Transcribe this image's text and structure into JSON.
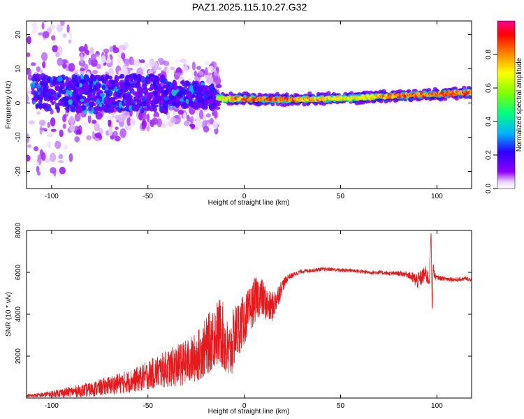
{
  "title": "PAZ1.2025.115.10.27.G32",
  "chart_data": [
    {
      "type": "heatmap",
      "title": "PAZ1.2025.115.10.27.G32",
      "xlabel": "Height of straight line (km)",
      "ylabel": "Frequency (Hz)",
      "xlim": [
        -113,
        118
      ],
      "ylim": [
        -25,
        24
      ],
      "x_ticks": [
        -100,
        -50,
        0,
        50,
        100
      ],
      "y_ticks": [
        -20,
        -10,
        0,
        10,
        20
      ],
      "x_tick_labels": [
        "-100",
        "-50",
        "0",
        "50",
        "100"
      ],
      "y_tick_labels": [
        "-20",
        "-10",
        "0",
        "10",
        "20"
      ],
      "colorbar": {
        "label": "Normalized spectral amplitude",
        "range": [
          0,
          1
        ],
        "ticks": [
          0.0,
          0.2,
          0.4,
          0.6,
          0.8
        ],
        "tick_labels": [
          "0.0",
          "0.2",
          "0.4",
          "0.6",
          "0.8"
        ],
        "colors": [
          "#ffffff",
          "#8f00ff",
          "#2b00ff",
          "#00b4ff",
          "#00ff80",
          "#7fff00",
          "#ffff00",
          "#ff8000",
          "#ff0000",
          "#ff0090"
        ]
      },
      "ridge": {
        "x": [
          -113,
          -100,
          -80,
          -60,
          -40,
          -25,
          -15,
          -10,
          0,
          10,
          20,
          40,
          60,
          80,
          100,
          118
        ],
        "center_freq": [
          3.0,
          2.8,
          2.6,
          3.0,
          2.8,
          2.4,
          1.8,
          1.2,
          1.2,
          1.2,
          1.0,
          1.2,
          1.6,
          2.2,
          2.6,
          3.2
        ],
        "peak_amplitude": [
          0.25,
          0.35,
          0.35,
          0.4,
          0.4,
          0.4,
          0.6,
          0.8,
          0.95,
          0.95,
          0.98,
          0.85,
          0.75,
          0.95,
          0.95,
          0.95
        ]
      },
      "grid": false
    },
    {
      "type": "line",
      "xlabel": "Height of straight line (km)",
      "ylabel": "SNR (10 * v/v)",
      "xlim": [
        -113,
        118
      ],
      "ylim": [
        0,
        8000
      ],
      "x_ticks": [
        -100,
        -50,
        0,
        50,
        100
      ],
      "y_ticks": [
        2000,
        4000,
        6000,
        8000
      ],
      "x_tick_labels": [
        "-100",
        "-50",
        "0",
        "50",
        "100"
      ],
      "y_tick_labels": [
        "2000",
        "4000",
        "6000",
        "8000"
      ],
      "line_color": "#e41a1c",
      "x": [
        -113,
        -105,
        -100,
        -95,
        -90,
        -85,
        -80,
        -75,
        -70,
        -65,
        -60,
        -55,
        -50,
        -45,
        -40,
        -35,
        -30,
        -25,
        -20,
        -17,
        -15,
        -12,
        -10,
        -8,
        -5,
        -2,
        0,
        3,
        5,
        8,
        10,
        13,
        15,
        18,
        20,
        23,
        25,
        28,
        30,
        35,
        40,
        45,
        50,
        55,
        60,
        65,
        70,
        75,
        80,
        85,
        88,
        90,
        92,
        94,
        95,
        96,
        97,
        97.5,
        98,
        99,
        100,
        105,
        110,
        115,
        118
      ],
      "y": [
        100,
        150,
        200,
        250,
        300,
        350,
        400,
        500,
        600,
        700,
        800,
        900,
        1100,
        1250,
        1400,
        1550,
        1700,
        1950,
        2400,
        2800,
        3000,
        3200,
        2600,
        2000,
        3000,
        3500,
        3700,
        4200,
        4600,
        4900,
        4700,
        4300,
        4400,
        5000,
        5400,
        5800,
        5850,
        6000,
        6050,
        6100,
        6150,
        6150,
        6100,
        6100,
        6050,
        6000,
        6000,
        5950,
        5950,
        5900,
        5700,
        5600,
        5750,
        5950,
        5800,
        5600,
        8000,
        4100,
        6200,
        5800,
        5750,
        5700,
        5650,
        5700,
        5650
      ],
      "noise_amplitude": [
        80,
        120,
        150,
        220,
        250,
        300,
        350,
        400,
        450,
        500,
        550,
        600,
        700,
        800,
        900,
        1000,
        1100,
        1200,
        1400,
        1500,
        1600,
        1700,
        1600,
        1500,
        1500,
        1300,
        1200,
        1100,
        1100,
        1000,
        900,
        800,
        700,
        500,
        300,
        150,
        120,
        100,
        90,
        90,
        90,
        90,
        90,
        90,
        90,
        90,
        100,
        100,
        110,
        150,
        300,
        400,
        400,
        400,
        400,
        400,
        0,
        0,
        300,
        200,
        110,
        100,
        100,
        100,
        100
      ],
      "grid": false
    }
  ]
}
